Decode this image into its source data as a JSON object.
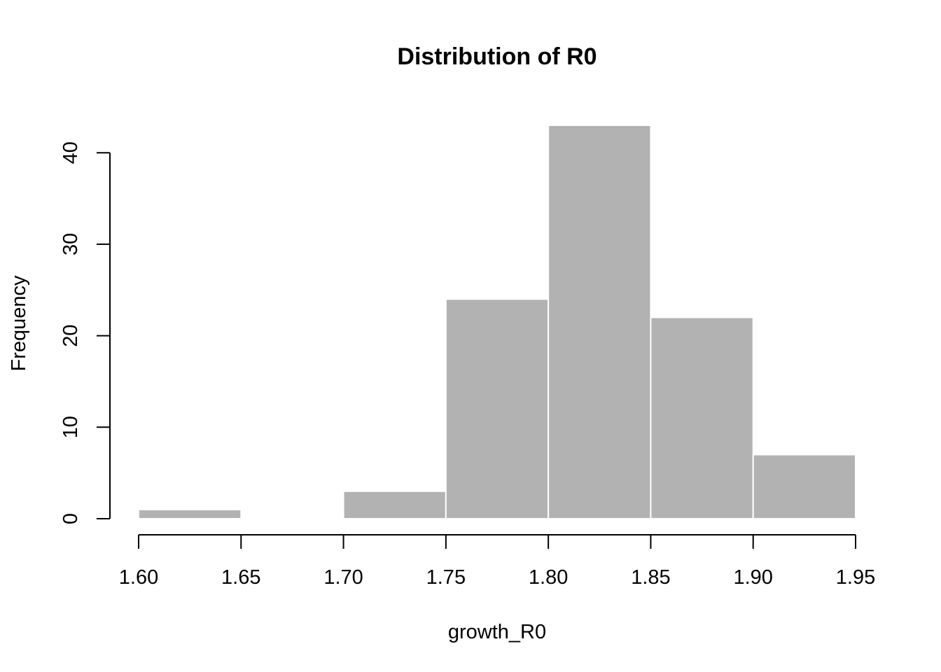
{
  "chart_data": {
    "type": "bar",
    "title": "Distribution of R0",
    "xlabel": "growth_R0",
    "ylabel": "Frequency",
    "bins": [
      {
        "start": 1.6,
        "end": 1.65,
        "count": 1
      },
      {
        "start": 1.65,
        "end": 1.7,
        "count": 0
      },
      {
        "start": 1.7,
        "end": 1.75,
        "count": 3
      },
      {
        "start": 1.75,
        "end": 1.8,
        "count": 24
      },
      {
        "start": 1.8,
        "end": 1.85,
        "count": 43
      },
      {
        "start": 1.85,
        "end": 1.9,
        "count": 22
      },
      {
        "start": 1.9,
        "end": 1.95,
        "count": 7
      }
    ],
    "x_ticks": [
      "1.60",
      "1.65",
      "1.70",
      "1.75",
      "1.80",
      "1.85",
      "1.90",
      "1.95"
    ],
    "y_ticks": [
      "0",
      "10",
      "20",
      "30",
      "40"
    ],
    "xlim": [
      1.6,
      1.95
    ],
    "ylim": [
      0,
      43
    ],
    "bar_color": "#b2b2b2",
    "bar_border_color": "#ffffff",
    "grid": false
  }
}
